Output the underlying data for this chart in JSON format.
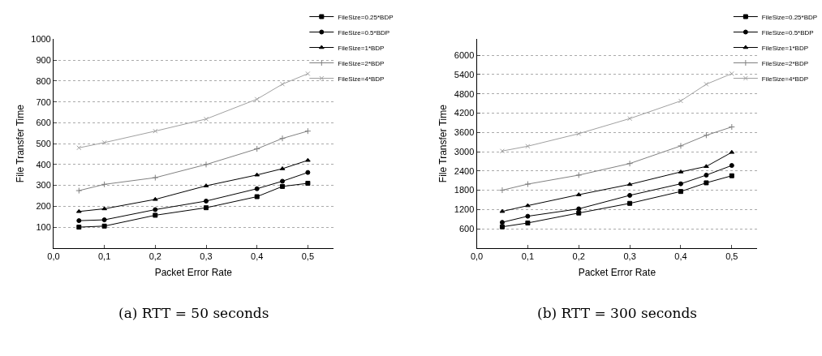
{
  "chart_data": [
    {
      "type": "line",
      "xlabel": "Packet Error Rate",
      "ylabel": "File Transfer Time",
      "annotations": [
        "(a) RTT = 50 seconds"
      ],
      "x": [
        0.05,
        0.1,
        0.2,
        0.3,
        0.4,
        0.45,
        0.5
      ],
      "xlim": [
        0,
        0.55
      ],
      "xticks": [
        {
          "value": 0,
          "label": "0,0"
        },
        {
          "value": 0.1,
          "label": "0,1"
        },
        {
          "value": 0.2,
          "label": "0,2"
        },
        {
          "value": 0.3,
          "label": "0,3"
        },
        {
          "value": 0.4,
          "label": "0,4"
        },
        {
          "value": 0.5,
          "label": "0,5"
        }
      ],
      "ylim": [
        0,
        1000
      ],
      "yticks": [
        100,
        200,
        300,
        400,
        500,
        600,
        700,
        800,
        900,
        1000
      ],
      "grid": "y",
      "legend": "top right",
      "line_style": "solid",
      "series": [
        {
          "name": "FileSize=0.25*BDP",
          "color": "#000000",
          "marker": "square",
          "values": [
            100,
            105,
            157,
            193,
            246,
            295,
            310
          ]
        },
        {
          "name": "FileSize=0.5*BDP",
          "color": "#000000",
          "marker": "circle",
          "values": [
            131,
            135,
            184,
            225,
            284,
            320,
            362
          ]
        },
        {
          "name": "FileSize=1*BDP",
          "color": "#000000",
          "marker": "triangle",
          "values": [
            175,
            188,
            233,
            298,
            350,
            380,
            420
          ]
        },
        {
          "name": "FileSize=2*BDP",
          "color": "#808080",
          "marker": "cross",
          "values": [
            275,
            305,
            337,
            400,
            475,
            525,
            560
          ]
        },
        {
          "name": "FileSize=4*BDP",
          "color": "#a0a0a0",
          "marker": "x",
          "values": [
            480,
            505,
            560,
            618,
            713,
            785,
            835
          ]
        }
      ]
    },
    {
      "type": "line",
      "xlabel": "Packet Error Rate",
      "ylabel": "File Transfer Time",
      "annotations": [
        "(b) RTT = 300 seconds"
      ],
      "x": [
        0.05,
        0.1,
        0.2,
        0.3,
        0.4,
        0.45,
        0.5
      ],
      "xlim": [
        0,
        0.55
      ],
      "xticks": [
        {
          "value": 0,
          "label": "0,0"
        },
        {
          "value": 0.1,
          "label": "0,1"
        },
        {
          "value": 0.2,
          "label": "0,2"
        },
        {
          "value": 0.3,
          "label": "0,3"
        },
        {
          "value": 0.4,
          "label": "0,4"
        },
        {
          "value": 0.5,
          "label": "0,5"
        }
      ],
      "ylim": [
        0,
        6500
      ],
      "yticks": [
        600,
        1200,
        1800,
        2400,
        3000,
        3600,
        4200,
        4800,
        5400,
        6000
      ],
      "grid": "y",
      "legend": "top right",
      "line_style": "solid",
      "series": [
        {
          "name": "FileSize=0.25*BDP",
          "color": "#000000",
          "marker": "square",
          "values": [
            660,
            780,
            1090,
            1390,
            1760,
            2030,
            2250
          ]
        },
        {
          "name": "FileSize=0.5*BDP",
          "color": "#000000",
          "marker": "circle",
          "values": [
            800,
            990,
            1220,
            1640,
            2000,
            2270,
            2570
          ]
        },
        {
          "name": "FileSize=1*BDP",
          "color": "#000000",
          "marker": "triangle",
          "values": [
            1140,
            1320,
            1660,
            1980,
            2370,
            2540,
            2980
          ]
        },
        {
          "name": "FileSize=2*BDP",
          "color": "#808080",
          "marker": "cross",
          "values": [
            1800,
            1990,
            2270,
            2630,
            3180,
            3510,
            3770
          ]
        },
        {
          "name": "FileSize=4*BDP",
          "color": "#a0a0a0",
          "marker": "x",
          "values": [
            3020,
            3170,
            3560,
            4030,
            4580,
            5100,
            5430
          ]
        }
      ]
    }
  ]
}
